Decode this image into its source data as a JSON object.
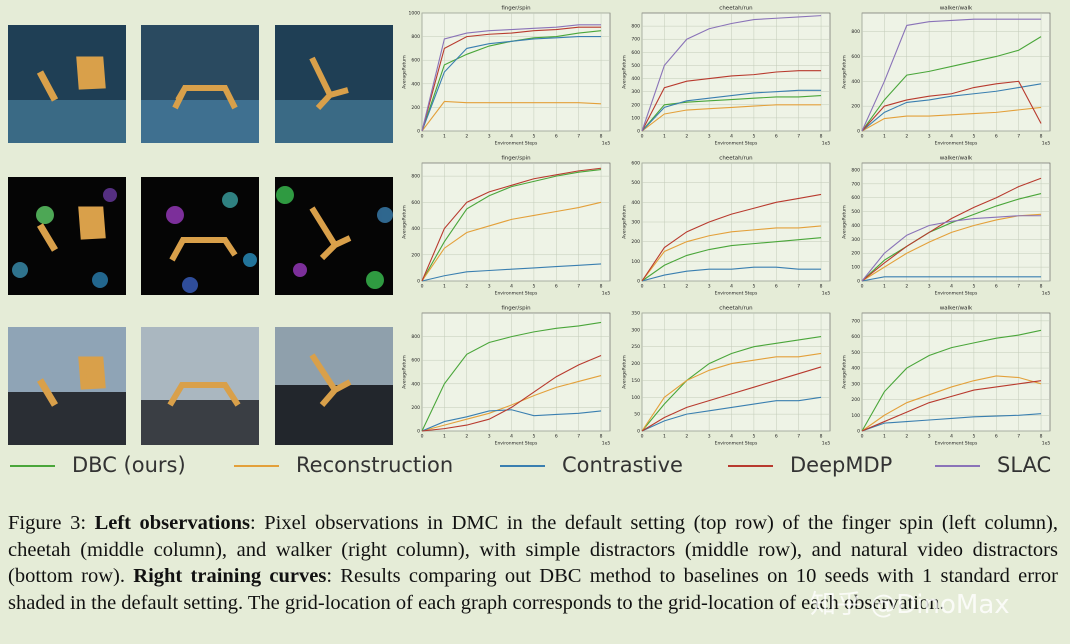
{
  "chart_data": [
    {
      "type": "line",
      "title": "finger/spin",
      "xlabel": "Environment Steps",
      "ylabel": "AverageReturn",
      "x_offset": "1e5",
      "x": [
        0,
        1,
        2,
        3,
        4,
        5,
        6,
        7,
        8
      ],
      "xlim": [
        0,
        8.4
      ],
      "xticks": [
        0,
        1,
        2,
        3,
        4,
        5,
        6,
        7,
        8
      ],
      "ylim": [
        0,
        1000
      ],
      "yticks": [
        0,
        200,
        400,
        600,
        800,
        1000
      ],
      "grid": true,
      "series": [
        {
          "color": "#4aa63a",
          "values": [
            0,
            560,
            650,
            720,
            760,
            790,
            800,
            830,
            850
          ]
        },
        {
          "color": "#e3a03a",
          "values": [
            0,
            250,
            240,
            240,
            240,
            240,
            240,
            240,
            230
          ]
        },
        {
          "color": "#3a7fb0",
          "values": [
            0,
            500,
            700,
            740,
            760,
            780,
            790,
            800,
            800
          ]
        },
        {
          "color": "#b83a2e",
          "values": [
            0,
            700,
            800,
            820,
            830,
            850,
            860,
            880,
            880
          ]
        },
        {
          "color": "#8a73b8",
          "values": [
            0,
            780,
            830,
            850,
            860,
            870,
            880,
            900,
            900
          ]
        }
      ]
    },
    {
      "type": "line",
      "title": "cheetah/run",
      "xlabel": "Environment Steps",
      "ylabel": "AverageReturn",
      "x_offset": "1e5",
      "x": [
        0,
        1,
        2,
        3,
        4,
        5,
        6,
        7,
        8
      ],
      "xlim": [
        0,
        8.4
      ],
      "xticks": [
        0,
        1,
        2,
        3,
        4,
        5,
        6,
        7,
        8
      ],
      "ylim": [
        0,
        900
      ],
      "yticks": [
        0,
        100,
        200,
        300,
        400,
        500,
        600,
        700,
        800
      ],
      "grid": true,
      "series": [
        {
          "color": "#4aa63a",
          "values": [
            0,
            200,
            220,
            230,
            240,
            250,
            260,
            260,
            270
          ]
        },
        {
          "color": "#e3a03a",
          "values": [
            0,
            130,
            160,
            170,
            180,
            190,
            200,
            200,
            200
          ]
        },
        {
          "color": "#3a7fb0",
          "values": [
            0,
            180,
            230,
            250,
            270,
            290,
            300,
            310,
            310
          ]
        },
        {
          "color": "#b83a2e",
          "values": [
            0,
            330,
            380,
            400,
            420,
            430,
            450,
            460,
            460
          ]
        },
        {
          "color": "#8a73b8",
          "values": [
            0,
            500,
            700,
            780,
            820,
            850,
            860,
            870,
            880
          ]
        }
      ]
    },
    {
      "type": "line",
      "title": "walker/walk",
      "xlabel": "Environment Steps",
      "ylabel": "AverageReturn",
      "x_offset": "1e5",
      "x": [
        0,
        1,
        2,
        3,
        4,
        5,
        6,
        7,
        8
      ],
      "xlim": [
        0,
        8.4
      ],
      "xticks": [
        0,
        1,
        2,
        3,
        4,
        5,
        6,
        7,
        8
      ],
      "ylim": [
        0,
        950
      ],
      "yticks": [
        0,
        200,
        400,
        600,
        800
      ],
      "grid": true,
      "series": [
        {
          "color": "#4aa63a",
          "values": [
            0,
            250,
            450,
            480,
            520,
            560,
            600,
            650,
            760
          ]
        },
        {
          "color": "#e3a03a",
          "values": [
            0,
            100,
            120,
            120,
            130,
            140,
            150,
            170,
            190
          ]
        },
        {
          "color": "#3a7fb0",
          "values": [
            0,
            150,
            230,
            250,
            280,
            300,
            320,
            350,
            380
          ]
        },
        {
          "color": "#b83a2e",
          "values": [
            0,
            200,
            250,
            280,
            300,
            350,
            380,
            400,
            60
          ]
        },
        {
          "color": "#8a73b8",
          "values": [
            0,
            400,
            850,
            880,
            890,
            900,
            900,
            900,
            900
          ]
        }
      ]
    },
    {
      "type": "line",
      "title": "finger/spin",
      "xlabel": "Environment Steps",
      "ylabel": "AverageReturn",
      "x_offset": "1e5",
      "x": [
        0,
        1,
        2,
        3,
        4,
        5,
        6,
        7,
        8
      ],
      "xlim": [
        0,
        8.4
      ],
      "xticks": [
        0,
        1,
        2,
        3,
        4,
        5,
        6,
        7,
        8
      ],
      "ylim": [
        0,
        900
      ],
      "yticks": [
        0,
        200,
        400,
        600,
        800
      ],
      "grid": true,
      "series": [
        {
          "color": "#4aa63a",
          "values": [
            0,
            300,
            550,
            650,
            720,
            760,
            800,
            830,
            850
          ]
        },
        {
          "color": "#e3a03a",
          "values": [
            0,
            250,
            370,
            420,
            470,
            500,
            530,
            560,
            600
          ]
        },
        {
          "color": "#3a7fb0",
          "values": [
            0,
            40,
            70,
            80,
            90,
            100,
            110,
            120,
            130
          ]
        },
        {
          "color": "#b83a2e",
          "values": [
            0,
            400,
            600,
            680,
            730,
            780,
            810,
            840,
            860
          ]
        }
      ]
    },
    {
      "type": "line",
      "title": "cheetah/run",
      "xlabel": "Environment Steps",
      "ylabel": "AverageReturn",
      "x_offset": "1e5",
      "x": [
        0,
        1,
        2,
        3,
        4,
        5,
        6,
        7,
        8
      ],
      "xlim": [
        0,
        8.4
      ],
      "xticks": [
        0,
        1,
        2,
        3,
        4,
        5,
        6,
        7,
        8
      ],
      "ylim": [
        0,
        600
      ],
      "yticks": [
        0,
        100,
        200,
        300,
        400,
        500,
        600
      ],
      "grid": true,
      "series": [
        {
          "color": "#4aa63a",
          "values": [
            0,
            80,
            130,
            160,
            180,
            190,
            200,
            210,
            220
          ]
        },
        {
          "color": "#e3a03a",
          "values": [
            0,
            150,
            200,
            230,
            250,
            260,
            270,
            270,
            280
          ]
        },
        {
          "color": "#3a7fb0",
          "values": [
            0,
            30,
            50,
            60,
            60,
            70,
            70,
            60,
            60
          ]
        },
        {
          "color": "#b83a2e",
          "values": [
            0,
            170,
            250,
            300,
            340,
            370,
            400,
            420,
            440
          ]
        }
      ]
    },
    {
      "type": "line",
      "title": "walker/walk",
      "xlabel": "Environment Steps",
      "ylabel": "AverageReturn",
      "x_offset": "1e5",
      "x": [
        0,
        1,
        2,
        3,
        4,
        5,
        6,
        7,
        8
      ],
      "xlim": [
        0,
        8.4
      ],
      "xticks": [
        0,
        1,
        2,
        3,
        4,
        5,
        6,
        7,
        8
      ],
      "ylim": [
        0,
        850
      ],
      "yticks": [
        0,
        100,
        200,
        300,
        400,
        500,
        600,
        700,
        800
      ],
      "grid": true,
      "series": [
        {
          "color": "#4aa63a",
          "values": [
            0,
            150,
            250,
            350,
            420,
            480,
            540,
            590,
            630
          ]
        },
        {
          "color": "#e3a03a",
          "values": [
            0,
            100,
            200,
            280,
            350,
            400,
            440,
            470,
            480
          ]
        },
        {
          "color": "#3a7fb0",
          "values": [
            0,
            30,
            30,
            30,
            30,
            30,
            30,
            30,
            30
          ]
        },
        {
          "color": "#b83a2e",
          "values": [
            0,
            130,
            250,
            350,
            450,
            530,
            600,
            680,
            740
          ]
        },
        {
          "color": "#8a73b8",
          "values": [
            0,
            200,
            330,
            400,
            430,
            450,
            460,
            470,
            470
          ]
        }
      ]
    },
    {
      "type": "line",
      "title": "finger/spin",
      "xlabel": "Environment Steps",
      "ylabel": "AverageReturn",
      "x_offset": "1e5",
      "x": [
        0,
        1,
        2,
        3,
        4,
        5,
        6,
        7,
        8
      ],
      "xlim": [
        0,
        8.4
      ],
      "xticks": [
        0,
        1,
        2,
        3,
        4,
        5,
        6,
        7,
        8
      ],
      "ylim": [
        0,
        1000
      ],
      "yticks": [
        0,
        200,
        400,
        600,
        800
      ],
      "grid": true,
      "series": [
        {
          "color": "#4aa63a",
          "values": [
            0,
            400,
            650,
            750,
            800,
            840,
            870,
            890,
            920
          ]
        },
        {
          "color": "#e3a03a",
          "values": [
            0,
            50,
            100,
            150,
            220,
            300,
            370,
            420,
            470
          ]
        },
        {
          "color": "#3a7fb0",
          "values": [
            0,
            80,
            120,
            170,
            180,
            130,
            140,
            150,
            170
          ]
        },
        {
          "color": "#b83a2e",
          "values": [
            0,
            20,
            50,
            100,
            200,
            330,
            460,
            560,
            640
          ]
        }
      ]
    },
    {
      "type": "line",
      "title": "cheetah/run",
      "xlabel": "Environment Steps",
      "ylabel": "AverageReturn",
      "x_offset": "1e5",
      "x": [
        0,
        1,
        2,
        3,
        4,
        5,
        6,
        7,
        8
      ],
      "xlim": [
        0,
        8.4
      ],
      "xticks": [
        0,
        1,
        2,
        3,
        4,
        5,
        6,
        7,
        8
      ],
      "ylim": [
        0,
        350
      ],
      "yticks": [
        0,
        50,
        100,
        150,
        200,
        250,
        300,
        350
      ],
      "grid": true,
      "series": [
        {
          "color": "#4aa63a",
          "values": [
            0,
            80,
            150,
            200,
            230,
            250,
            260,
            270,
            280
          ]
        },
        {
          "color": "#e3a03a",
          "values": [
            0,
            100,
            150,
            180,
            200,
            210,
            220,
            220,
            230
          ]
        },
        {
          "color": "#3a7fb0",
          "values": [
            0,
            30,
            50,
            60,
            70,
            80,
            90,
            90,
            100
          ]
        },
        {
          "color": "#b83a2e",
          "values": [
            0,
            40,
            70,
            90,
            110,
            130,
            150,
            170,
            190
          ]
        }
      ]
    },
    {
      "type": "line",
      "title": "walker/walk",
      "xlabel": "Environment Steps",
      "ylabel": "AverageReturn",
      "x_offset": "1e5",
      "x": [
        0,
        1,
        2,
        3,
        4,
        5,
        6,
        7,
        8
      ],
      "xlim": [
        0,
        8.4
      ],
      "xticks": [
        0,
        1,
        2,
        3,
        4,
        5,
        6,
        7,
        8
      ],
      "ylim": [
        0,
        750
      ],
      "yticks": [
        0,
        100,
        200,
        300,
        400,
        500,
        600,
        700
      ],
      "grid": true,
      "series": [
        {
          "color": "#4aa63a",
          "values": [
            0,
            250,
            400,
            480,
            530,
            560,
            590,
            610,
            640
          ]
        },
        {
          "color": "#e3a03a",
          "values": [
            0,
            100,
            180,
            230,
            280,
            320,
            350,
            340,
            300
          ]
        },
        {
          "color": "#3a7fb0",
          "values": [
            0,
            50,
            60,
            70,
            80,
            90,
            95,
            100,
            110
          ]
        },
        {
          "color": "#b83a2e",
          "values": [
            0,
            60,
            120,
            180,
            220,
            260,
            280,
            300,
            320
          ]
        }
      ]
    }
  ],
  "legend": [
    {
      "name": "DBC (ours)",
      "color": "#4aa63a"
    },
    {
      "name": "Reconstruction",
      "color": "#e3a03a"
    },
    {
      "name": "Contrastive",
      "color": "#3a7fb0"
    },
    {
      "name": "DeepMDP",
      "color": "#b83a2e"
    },
    {
      "name": "SLAC",
      "color": "#8a73b8"
    }
  ],
  "caption": [
    {
      "text": "Figure 3: ",
      "bold": false
    },
    {
      "text": "Left observations",
      "bold": true
    },
    {
      "text": ": Pixel observations in DMC in the default setting (top row) of the finger spin (left column), cheetah (middle column), and walker (right column), with simple distractors (middle row), and natural video distractors (bottom row). ",
      "bold": false
    },
    {
      "text": "Right training curves",
      "bold": true
    },
    {
      "text": ": Results comparing out DBC method to baselines on 10 seeds with 1 standard error shaded in the default setting. The grid-location of each graph corresponds to the grid-location of each observation.",
      "bold": false
    }
  ],
  "watermark": "知乎 @DinoMax"
}
